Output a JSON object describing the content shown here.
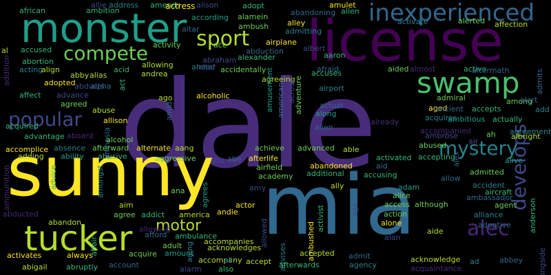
{
  "palette": {
    "background": "#000000",
    "yellow": "#fde725",
    "lime": "#b5de2b",
    "green": "#6ece58",
    "mint": "#35b779",
    "teal": "#1f9e89",
    "cyan": "#26828e",
    "blue": "#31688e",
    "indigo": "#3e4989",
    "violet": "#482878",
    "purple": "#440154"
  },
  "words": [
    {
      "text": "dale",
      "size": 175,
      "color": "#472c7a"
    },
    {
      "text": "sunny",
      "size": 100,
      "color": "#fde725"
    },
    {
      "text": "mia",
      "size": 120,
      "color": "#31688e"
    },
    {
      "text": "license",
      "size": 82,
      "color": "#440154"
    },
    {
      "text": "monster",
      "size": 58,
      "color": "#1f9e89"
    },
    {
      "text": "tucker",
      "size": 50,
      "color": "#b5de2b"
    },
    {
      "text": "swamp",
      "size": 42,
      "color": "#4ac16d"
    },
    {
      "text": "inexperienced",
      "size": 34,
      "color": "#31688e"
    },
    {
      "text": "compete",
      "size": 28,
      "color": "#6ece58"
    },
    {
      "text": "sport",
      "size": 30,
      "color": "#b5de2b"
    },
    {
      "text": "popular",
      "size": 28,
      "color": "#3e4989"
    },
    {
      "text": "mystery",
      "size": 28,
      "color": "#26828e"
    },
    {
      "text": "alec",
      "size": 30,
      "color": "#482878"
    },
    {
      "text": "develops",
      "size": 28,
      "color": "#3e4989"
    },
    {
      "text": "motor",
      "size": 22,
      "color": "#b5de2b"
    },
    {
      "text": "african",
      "size": 11,
      "color": "#35b779"
    },
    {
      "text": "allie",
      "size": 11,
      "color": "#3e4989"
    },
    {
      "text": "address",
      "size": 11,
      "color": "#26828e"
    },
    {
      "text": "amends",
      "size": 11,
      "color": "#35b779"
    },
    {
      "text": "actress",
      "size": 12,
      "color": "#fde725"
    },
    {
      "text": "alison",
      "size": 11,
      "color": "#3e4989"
    },
    {
      "text": "adopt",
      "size": 11,
      "color": "#35b779"
    },
    {
      "text": "amulet",
      "size": 11,
      "color": "#fde725"
    },
    {
      "text": "abandoning",
      "size": 11,
      "color": "#31688e"
    },
    {
      "text": "allen",
      "size": 11,
      "color": "#35b779"
    },
    {
      "text": "affection",
      "size": 11,
      "color": "#b5de2b"
    },
    {
      "text": "ambition",
      "size": 11,
      "color": "#35b779"
    },
    {
      "text": "according",
      "size": 11,
      "color": "#1f9e89"
    },
    {
      "text": "alamein",
      "size": 11,
      "color": "#6ece58"
    },
    {
      "text": "activate",
      "size": 11,
      "color": "#26828e"
    },
    {
      "text": "alerted",
      "size": 11,
      "color": "#6ece58"
    },
    {
      "text": "altar",
      "size": 11,
      "color": "#31688e"
    },
    {
      "text": "ace",
      "size": 11,
      "color": "#6ece58"
    },
    {
      "text": "ambush",
      "size": 11,
      "color": "#6ece58"
    },
    {
      "text": "alley",
      "size": 11,
      "color": "#fde725"
    },
    {
      "text": "admitting",
      "size": 11,
      "color": "#26828e"
    },
    {
      "text": "airplane",
      "size": 11,
      "color": "#fde725"
    },
    {
      "text": "activity",
      "size": 11,
      "color": "#6ece58"
    },
    {
      "text": "abduction",
      "size": 11,
      "color": "#31688e"
    },
    {
      "text": "albert",
      "size": 11,
      "color": "#3e4989"
    },
    {
      "text": "al",
      "size": 11,
      "color": "#b5de2b"
    },
    {
      "text": "accused",
      "size": 11,
      "color": "#35b779"
    },
    {
      "text": "abraham",
      "size": 11,
      "color": "#3e4989"
    },
    {
      "text": "alexander",
      "size": 11,
      "color": "#35b779"
    },
    {
      "text": "abortion",
      "size": 11,
      "color": "#35b779"
    },
    {
      "text": "acting",
      "size": 11,
      "color": "#26828e"
    },
    {
      "text": "align",
      "size": 11,
      "color": "#b5de2b"
    },
    {
      "text": "acid",
      "size": 11,
      "color": "#35b779"
    },
    {
      "text": "allowing",
      "size": 11,
      "color": "#b5de2b"
    },
    {
      "text": "ahead",
      "size": 11,
      "color": "#26828e"
    },
    {
      "text": "alter",
      "size": 11,
      "color": "#3e4989"
    },
    {
      "text": "accidentally",
      "size": 11,
      "color": "#6ece58"
    },
    {
      "text": "aaron",
      "size": 11,
      "color": "#35b779"
    },
    {
      "text": "afraid",
      "size": 11,
      "color": "#31688e"
    },
    {
      "text": "accuses",
      "size": 11,
      "color": "#35b779"
    },
    {
      "text": "aided",
      "size": 11,
      "color": "#6ece58"
    },
    {
      "text": "almost",
      "size": 11,
      "color": "#482878"
    },
    {
      "text": "active",
      "size": 11,
      "color": "#35b779"
    },
    {
      "text": "aftermath",
      "size": 11,
      "color": "#31688e"
    },
    {
      "text": "admits",
      "size": 11,
      "color": "#31688e"
    },
    {
      "text": "abby",
      "size": 11,
      "color": "#b5de2b"
    },
    {
      "text": "alias",
      "size": 11,
      "color": "#b5de2b"
    },
    {
      "text": "andrea",
      "size": 11,
      "color": "#b5de2b"
    },
    {
      "text": "adopted",
      "size": 11,
      "color": "#fde725"
    },
    {
      "text": "abducts",
      "size": 11,
      "color": "#3e4989"
    },
    {
      "text": "alpha",
      "size": 11,
      "color": "#31688e"
    },
    {
      "text": "act",
      "size": 11,
      "color": "#35b779"
    },
    {
      "text": "agreeing",
      "size": 11,
      "color": "#b5de2b"
    },
    {
      "text": "airport",
      "size": 11,
      "color": "#26828e"
    },
    {
      "text": "affect",
      "size": 11,
      "color": "#35b779"
    },
    {
      "text": "advance",
      "size": 11,
      "color": "#3e4989"
    },
    {
      "text": "agreed",
      "size": 11,
      "color": "#6ece58"
    },
    {
      "text": "ago",
      "size": 11,
      "color": "#b5de2b"
    },
    {
      "text": "alcoholic",
      "size": 11,
      "color": "#fde725"
    },
    {
      "text": "american",
      "size": 11,
      "color": "#31688e"
    },
    {
      "text": "across",
      "size": 11,
      "color": "#3e4989"
    },
    {
      "text": "adventure",
      "size": 11,
      "color": "#6ece58"
    },
    {
      "text": "amusement",
      "size": 11,
      "color": "#1f9e89"
    },
    {
      "text": "actual",
      "size": 11,
      "color": "#31688e"
    },
    {
      "text": "admiral",
      "size": 11,
      "color": "#6ece58"
    },
    {
      "text": "among",
      "size": 11,
      "color": "#6ece58"
    },
    {
      "text": "alert",
      "size": 11,
      "color": "#31688e"
    },
    {
      "text": "add",
      "size": 11,
      "color": "#26828e"
    },
    {
      "text": "acquired",
      "size": 11,
      "color": "#35b779"
    },
    {
      "text": "abuse",
      "size": 11,
      "color": "#b5de2b"
    },
    {
      "text": "amid",
      "size": 11,
      "color": "#31688e"
    },
    {
      "text": "along",
      "size": 11,
      "color": "#1f9e89"
    },
    {
      "text": "alien",
      "size": 11,
      "color": "#31688e"
    },
    {
      "text": "already",
      "size": 11,
      "color": "#482878"
    },
    {
      "text": "aged",
      "size": 11,
      "color": "#fde725"
    },
    {
      "text": "ancient",
      "size": 11,
      "color": "#31688e"
    },
    {
      "text": "accepts",
      "size": 11,
      "color": "#35b779"
    },
    {
      "text": "acquires",
      "size": 11,
      "color": "#26828e"
    },
    {
      "text": "ambitious",
      "size": 11,
      "color": "#1f9e89"
    },
    {
      "text": "actually",
      "size": 11,
      "color": "#35b779"
    },
    {
      "text": "allison",
      "size": 11,
      "color": "#fde725"
    },
    {
      "text": "amnesia",
      "size": 11,
      "color": "#31688e"
    },
    {
      "text": "advantage",
      "size": 11,
      "color": "#35b779"
    },
    {
      "text": "aboard",
      "size": 11,
      "color": "#482878"
    },
    {
      "text": "alcohol",
      "size": 11,
      "color": "#6ece58"
    },
    {
      "text": "accompanied",
      "size": 11,
      "color": "#482878"
    },
    {
      "text": "agreement",
      "size": 11,
      "color": "#26828e"
    },
    {
      "text": "ah",
      "size": 11,
      "color": "#6ece58"
    },
    {
      "text": "albright",
      "size": 11,
      "color": "#b5de2b"
    },
    {
      "text": "ambrose",
      "size": 11,
      "color": "#3e4989"
    },
    {
      "text": "air",
      "size": 11,
      "color": "#3e4989"
    },
    {
      "text": "accomplice",
      "size": 11,
      "color": "#fde725"
    },
    {
      "text": "absence",
      "size": 11,
      "color": "#26828e"
    },
    {
      "text": "afterward",
      "size": 11,
      "color": "#6ece58"
    },
    {
      "text": "alternate",
      "size": 11,
      "color": "#fde725"
    },
    {
      "text": "achieve",
      "size": 11,
      "color": "#6ece58"
    },
    {
      "text": "advanced",
      "size": 11,
      "color": "#6ece58"
    },
    {
      "text": "able",
      "size": 11,
      "color": "#b5de2b"
    },
    {
      "text": "abused",
      "size": 11,
      "color": "#6ece58"
    },
    {
      "text": "adding",
      "size": 11,
      "color": "#b5de2b"
    },
    {
      "text": "ability",
      "size": 11,
      "color": "#1f9e89"
    },
    {
      "text": "abusive",
      "size": 11,
      "color": "#35b779"
    },
    {
      "text": "aang",
      "size": 11,
      "color": "#b5de2b"
    },
    {
      "text": "aggressive",
      "size": 11,
      "color": "#6ece58"
    },
    {
      "text": "abu",
      "size": 11,
      "color": "#3e4989"
    },
    {
      "text": "abe",
      "size": 11,
      "color": "#31688e"
    },
    {
      "text": "afterlife",
      "size": 11,
      "color": "#fde725"
    },
    {
      "text": "activated",
      "size": 11,
      "color": "#35b779"
    },
    {
      "text": "accepting",
      "size": 11,
      "color": "#35b779"
    },
    {
      "text": "alex",
      "size": 11,
      "color": "#31688e"
    },
    {
      "text": "alive",
      "size": 11,
      "color": "#1f9e89"
    },
    {
      "text": "abandoned",
      "size": 11,
      "color": "#fde725"
    },
    {
      "text": "aid",
      "size": 11,
      "color": "#31688e"
    },
    {
      "text": "airfield",
      "size": 11,
      "color": "#6ece58"
    },
    {
      "text": "additional",
      "size": 11,
      "color": "#35b779"
    },
    {
      "text": "accusing",
      "size": 11,
      "color": "#35b779"
    },
    {
      "text": "allow",
      "size": 11,
      "color": "#31688e"
    },
    {
      "text": "admitted",
      "size": 11,
      "color": "#6ece58"
    },
    {
      "text": "ammunition",
      "size": 11,
      "color": "#482878"
    },
    {
      "text": "advice",
      "size": 11,
      "color": "#35b779"
    },
    {
      "text": "amongst",
      "size": 11,
      "color": "#26828e"
    },
    {
      "text": "ana",
      "size": 11,
      "color": "#6ece58"
    },
    {
      "text": "agrees",
      "size": 11,
      "color": "#1f9e89"
    },
    {
      "text": "amy",
      "size": 11,
      "color": "#3e4989"
    },
    {
      "text": "academy",
      "size": 11,
      "color": "#6ece58"
    },
    {
      "text": "ally",
      "size": 11,
      "color": "#b5de2b"
    },
    {
      "text": "adam",
      "size": 11,
      "color": "#1f9e89"
    },
    {
      "text": "accident",
      "size": 11,
      "color": "#26828e"
    },
    {
      "text": "aircraft",
      "size": 11,
      "color": "#35b779"
    },
    {
      "text": "alice",
      "size": 11,
      "color": "#6ece58"
    },
    {
      "text": "access",
      "size": 11,
      "color": "#6ece58"
    },
    {
      "text": "although",
      "size": 11,
      "color": "#6ece58"
    },
    {
      "text": "ambassador",
      "size": 11,
      "color": "#31688e"
    },
    {
      "text": "aim",
      "size": 11,
      "color": "#b5de2b"
    },
    {
      "text": "actor",
      "size": 11,
      "color": "#fde725"
    },
    {
      "text": "agent",
      "size": 11,
      "color": "#6ece58"
    },
    {
      "text": "anderson",
      "size": 11,
      "color": "#35b779"
    },
    {
      "text": "age",
      "size": 11,
      "color": "#3e4989"
    },
    {
      "text": "action",
      "size": 11,
      "color": "#6ece58"
    },
    {
      "text": "alliance",
      "size": 11,
      "color": "#26828e"
    },
    {
      "text": "abducted",
      "size": 11,
      "color": "#482878"
    },
    {
      "text": "agree",
      "size": 11,
      "color": "#6ece58"
    },
    {
      "text": "addict",
      "size": 11,
      "color": "#35b779"
    },
    {
      "text": "america",
      "size": 11,
      "color": "#b5de2b"
    },
    {
      "text": "andie",
      "size": 11,
      "color": "#fde725"
    },
    {
      "text": "activist",
      "size": 11,
      "color": "#35b779"
    },
    {
      "text": "alone",
      "size": 11,
      "color": "#fde725"
    },
    {
      "text": "adoptive",
      "size": 11,
      "color": "#31688e"
    },
    {
      "text": "abandon",
      "size": 11,
      "color": "#b5de2b"
    },
    {
      "text": "ambushed",
      "size": 11,
      "color": "#fde725"
    },
    {
      "text": "allowed",
      "size": 11,
      "color": "#3e4989"
    },
    {
      "text": "aide",
      "size": 11,
      "color": "#b5de2b"
    },
    {
      "text": "alan",
      "size": 11,
      "color": "#3e4989"
    },
    {
      "text": "affair",
      "size": 11,
      "color": "#35b779"
    },
    {
      "text": "afford",
      "size": 11,
      "color": "#31688e"
    },
    {
      "text": "ambulance",
      "size": 11,
      "color": "#35b779"
    },
    {
      "text": "accompanies",
      "size": 11,
      "color": "#b5de2b"
    },
    {
      "text": "aging",
      "size": 11,
      "color": "#26828e"
    },
    {
      "text": "adult",
      "size": 11,
      "color": "#6ece58"
    },
    {
      "text": "acknowledges",
      "size": 11,
      "color": "#b5de2b"
    },
    {
      "text": "advises",
      "size": 11,
      "color": "#26828e"
    },
    {
      "text": "accepted",
      "size": 11,
      "color": "#b5de2b"
    },
    {
      "text": "activates",
      "size": 11,
      "color": "#fde725"
    },
    {
      "text": "always",
      "size": 11,
      "color": "#fde725"
    },
    {
      "text": "acquire",
      "size": 11,
      "color": "#6ece58"
    },
    {
      "text": "amount",
      "size": 11,
      "color": "#1f9e89"
    },
    {
      "text": "admit",
      "size": 11,
      "color": "#31688e"
    },
    {
      "text": "acknowledge",
      "size": 11,
      "color": "#b5de2b"
    },
    {
      "text": "ad",
      "size": 11,
      "color": "#26828e"
    },
    {
      "text": "abbey",
      "size": 11,
      "color": "#31688e"
    },
    {
      "text": "abigail",
      "size": 11,
      "color": "#b5de2b"
    },
    {
      "text": "abruptly",
      "size": 11,
      "color": "#35b779"
    },
    {
      "text": "account",
      "size": 11,
      "color": "#31688e"
    },
    {
      "text": "alarm",
      "size": 11,
      "color": "#3e4989"
    },
    {
      "text": "accompany",
      "size": 11,
      "color": "#b5de2b"
    },
    {
      "text": "ali",
      "size": 11,
      "color": "#26828e"
    },
    {
      "text": "accept",
      "size": 11,
      "color": "#b5de2b"
    },
    {
      "text": "afterwards",
      "size": 11,
      "color": "#35b779"
    },
    {
      "text": "also",
      "size": 11,
      "color": "#35b779"
    },
    {
      "text": "agency",
      "size": 11,
      "color": "#26828e"
    },
    {
      "text": "acquaintance",
      "size": 11,
      "color": "#482878"
    },
    {
      "text": "allowing",
      "size": 11,
      "color": "#482878"
    },
    {
      "text": "addition",
      "size": 11,
      "color": "#482878"
    },
    {
      "text": "alongside",
      "size": 11,
      "color": "#3e4989"
    }
  ]
}
